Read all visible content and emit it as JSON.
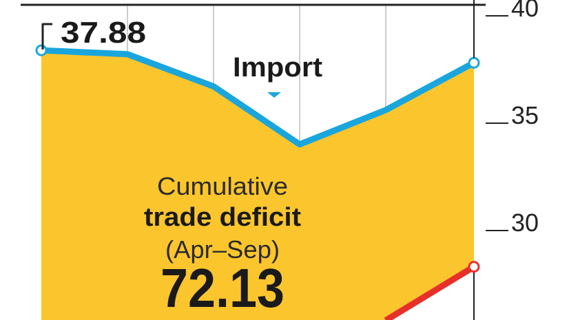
{
  "chart_data": {
    "type": "line",
    "x": [
      1,
      2,
      3,
      4,
      5,
      6
    ],
    "series": [
      {
        "name": "Import",
        "values": [
          37.88,
          37.7,
          36.2,
          33.5,
          35.1,
          37.3
        ],
        "color": "#1aa6dc"
      },
      {
        "values": [
          null,
          null,
          null,
          null,
          25.3,
          27.8
        ],
        "color": "#e8302a"
      }
    ],
    "fill_color": "#fbc52e",
    "y_ticks": [
      "30",
      "35",
      "40"
    ],
    "ylim": [
      24.5,
      40.3
    ],
    "y_axis_side": "right",
    "grid": "vertical",
    "annotations": {
      "first_value": "37.88",
      "import_label": "Import",
      "deficit_line1": "Cumulative",
      "deficit_line2": "trade deficit",
      "deficit_line3": "(Apr–Sep)",
      "deficit_value": "72.13"
    }
  }
}
